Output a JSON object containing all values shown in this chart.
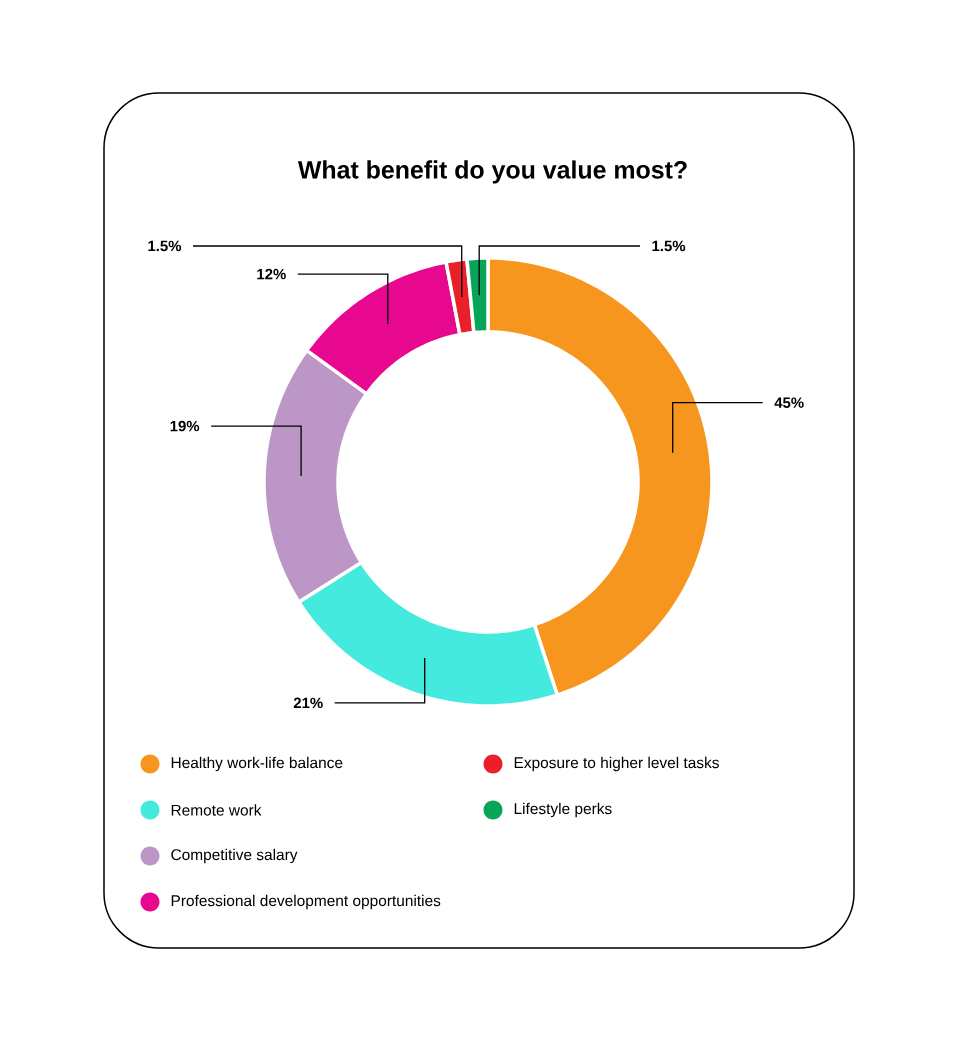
{
  "chart_data": {
    "type": "donut",
    "title": "What benefit do you value most?",
    "categories": [
      "Healthy work-life balance",
      "Remote work",
      "Competitive salary",
      "Professional development opportunities",
      "Exposure to higher level tasks",
      "Lifestyle perks"
    ],
    "values": [
      45,
      21,
      19,
      12,
      1.5,
      1.5
    ],
    "colors": [
      "#f7961e",
      "#45eadf",
      "#bb96c7",
      "#e8078f",
      "#e9202a",
      "#06a55a"
    ],
    "value_labels": [
      "45%",
      "21%",
      "19%",
      "12%",
      "1.5%",
      "1.5%"
    ],
    "legend": "bottom"
  }
}
